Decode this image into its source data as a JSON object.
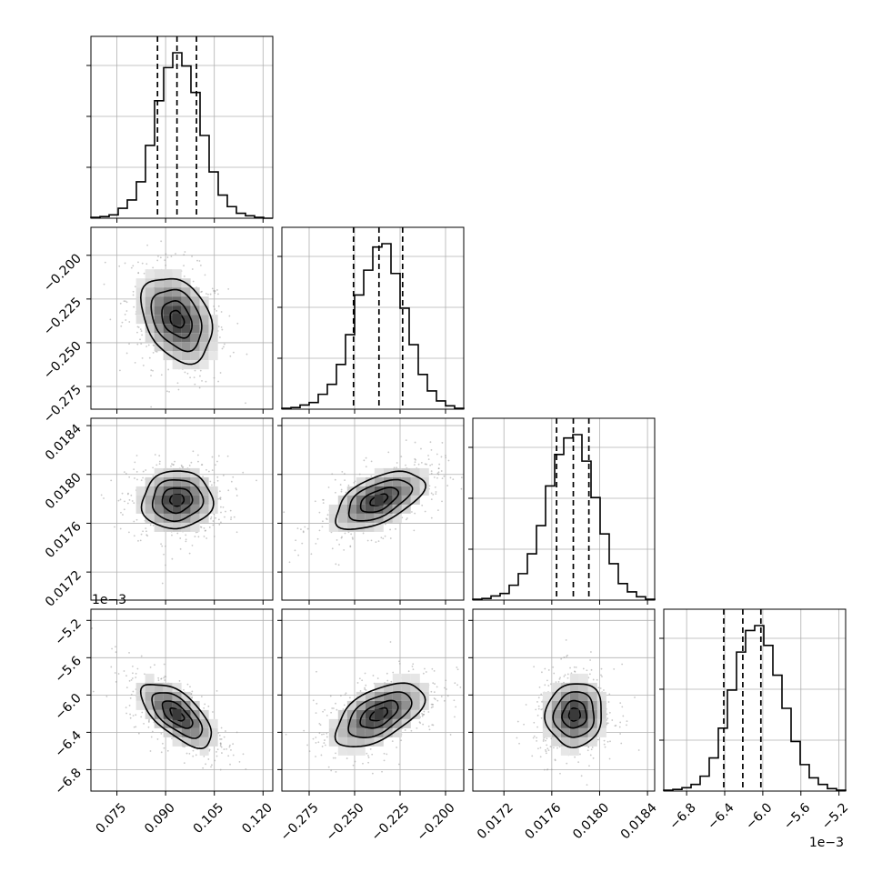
{
  "chart_data": {
    "type": "corner",
    "parameters": 4,
    "grid": true,
    "quantile_lines": "dashed",
    "colors": {
      "line": "#000000",
      "grid": "#b0b0b0",
      "points": "#9a9a9a",
      "cell_dark": "#3a3a3a"
    },
    "x_tick_labels": [
      [
        "0.075",
        "0.090",
        "0.105",
        "0.120"
      ],
      [
        "−0.275",
        "−0.250",
        "−0.225",
        "−0.200"
      ],
      [
        "0.0172",
        "0.0176",
        "0.0180",
        "0.0184"
      ],
      [
        "−6.8",
        "−6.4",
        "−6.0",
        "−5.6",
        "−5.2"
      ]
    ],
    "y_tick_labels": [
      [],
      [
        "−0.200",
        "−0.225",
        "−0.250",
        "−0.275"
      ],
      [
        "0.0184",
        "0.0180",
        "0.0176",
        "0.0172"
      ],
      [
        "−5.2",
        "−5.6",
        "−6.0",
        "−6.4",
        "−6.8"
      ]
    ],
    "offset_texts": {
      "param4_y": "1e−3",
      "param4_x": "1e−3"
    },
    "marginals": [
      {
        "param": 1,
        "x_range": [
          0.067,
          0.123
        ],
        "x_ticks": [
          0.075,
          0.09,
          0.105,
          0.12
        ],
        "quantiles": [
          0.0875,
          0.0935,
          0.0995
        ],
        "hist": [
          0.5,
          1,
          2,
          6,
          11,
          22,
          44,
          71,
          91,
          100,
          92,
          76,
          50,
          28,
          14,
          7,
          3,
          1.5,
          0.5,
          0
        ]
      },
      {
        "param": 2,
        "x_range": [
          -0.29,
          -0.19
        ],
        "x_ticks": [
          -0.275,
          -0.25,
          -0.225,
          -0.2
        ],
        "quantiles": [
          -0.2506,
          -0.2366,
          -0.2236
        ],
        "hist": [
          0.5,
          1,
          2.5,
          4,
          9,
          15,
          27,
          45,
          69,
          84,
          98,
          100,
          82,
          61,
          39,
          21,
          11,
          5,
          2,
          0.5
        ]
      },
      {
        "param": 3,
        "x_range": [
          0.01694,
          0.01846
        ],
        "x_ticks": [
          0.0172,
          0.0176,
          0.018,
          0.0184
        ],
        "quantiles": [
          0.01764,
          0.01778,
          0.01791
        ],
        "hist": [
          0.5,
          1,
          2.5,
          4,
          9,
          16,
          28,
          45,
          69,
          88,
          98,
          100,
          84,
          62,
          40,
          22,
          10,
          5,
          2,
          0.5
        ]
      },
      {
        "param": 4,
        "x_range": [
          -7.04,
          -5.13
        ],
        "x_ticks": [
          -6.8,
          -6.4,
          -6.0,
          -5.6,
          -5.2
        ],
        "quantiles": [
          -6.41,
          -6.21,
          -6.02
        ],
        "hist": [
          0.5,
          1,
          2,
          4,
          9,
          20,
          38,
          61,
          84,
          97,
          100,
          88,
          70,
          50,
          30,
          16,
          8,
          4,
          1.5,
          0.5
        ]
      }
    ],
    "joint": [
      {
        "row": 2,
        "col": 1,
        "mean": [
          0.0935,
          -0.2366
        ],
        "sd": [
          0.0062,
          0.0139
        ],
        "corr": -0.32
      },
      {
        "row": 3,
        "col": 1,
        "mean": [
          0.0935,
          0.01779
        ],
        "sd": [
          0.0062,
          0.000135
        ],
        "corr": 0.05
      },
      {
        "row": 3,
        "col": 2,
        "mean": [
          -0.2366,
          0.01779
        ],
        "sd": [
          0.0139,
          0.000135
        ],
        "corr": 0.55
      },
      {
        "row": 4,
        "col": 1,
        "mean": [
          0.0935,
          -6.21
        ],
        "sd": [
          0.0062,
          0.195
        ],
        "corr": -0.65
      },
      {
        "row": 4,
        "col": 2,
        "mean": [
          -0.2366,
          -6.21
        ],
        "sd": [
          0.0139,
          0.195
        ],
        "corr": 0.55
      },
      {
        "row": 4,
        "col": 3,
        "mean": [
          0.01779,
          -6.21
        ],
        "sd": [
          0.000135,
          0.195
        ],
        "corr": 0.05
      }
    ]
  }
}
